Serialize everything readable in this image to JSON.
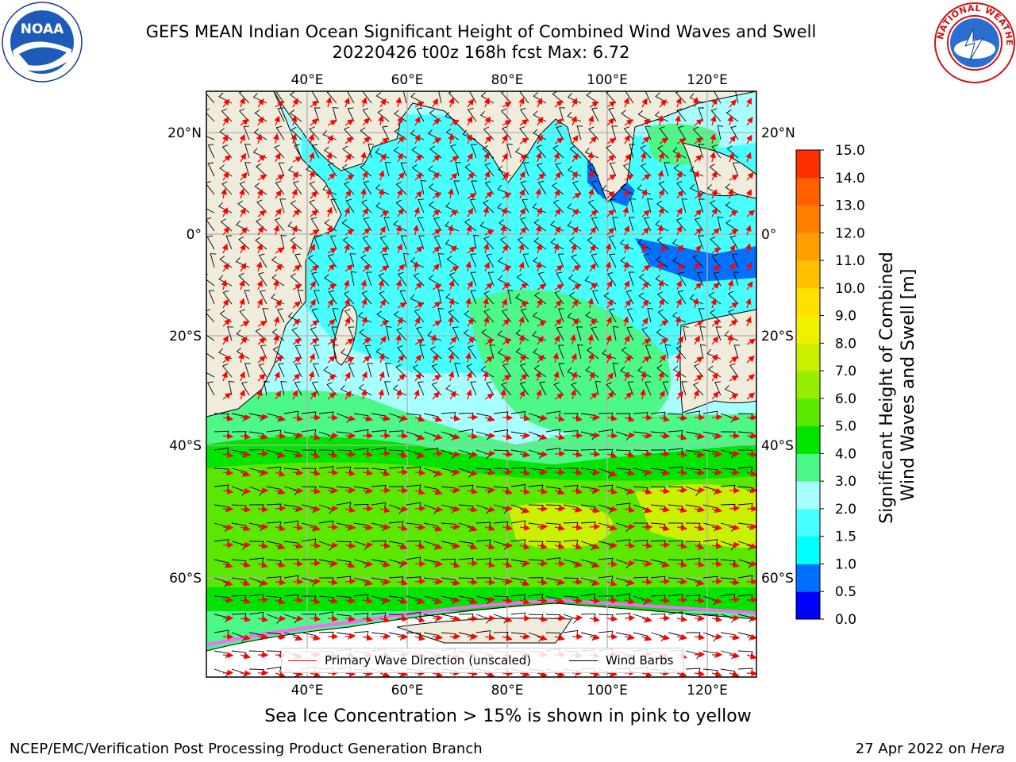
{
  "title": {
    "line1": "GEFS MEAN Indian Ocean Significant Height of Combined Wind Waves and Swell",
    "line2": "20220426 t00z 168h fcst   Max: 6.72"
  },
  "map": {
    "lon_labels": [
      "40°E",
      "60°E",
      "80°E",
      "100°E",
      "120°E"
    ],
    "lat_labels": [
      "20°N",
      "0°",
      "20°S",
      "40°S",
      "60°S"
    ],
    "colors": {
      "land": "#efecdb",
      "frame": "#000000",
      "grid": "#b0b0b0",
      "wave_arrow": "#ff0000",
      "wind_barb": "#000000",
      "sea_ice": "#ffffff"
    }
  },
  "colorbar": {
    "title_line1": "Significant Height of Combined",
    "title_line2": "Wind Waves and Swell [m]",
    "ticks": [
      "15.0",
      "14.0",
      "13.0",
      "12.0",
      "11.0",
      "10.0",
      "9.0",
      "8.0",
      "7.0",
      "6.0",
      "5.0",
      "4.0",
      "3.0",
      "2.0",
      "1.5",
      "1.0",
      "0.5",
      "0.0"
    ],
    "colors": [
      "#0000ff",
      "#0070ff",
      "#00ffff",
      "#48ffff",
      "#a8ffff",
      "#4cf888",
      "#00e400",
      "#5ae800",
      "#98ee00",
      "#c8f000",
      "#f0f000",
      "#ffe000",
      "#ffc000",
      "#ffa000",
      "#ff8000",
      "#ff6000",
      "#ff3000"
    ]
  },
  "legend": {
    "wave": "Primary Wave Direction (unscaled)",
    "wind": "Wind Barbs"
  },
  "caption": "Sea Ice Concentration > 15% is shown in pink to yellow",
  "footer": {
    "left": "NCEP/EMC/Verification Post Processing Product Generation Branch",
    "date": "27 Apr 2022 on ",
    "machine": "Hera"
  },
  "logos": {
    "noaa_text": "NOAA",
    "nws_text": "NATIONAL WEATHER SERVICE"
  }
}
